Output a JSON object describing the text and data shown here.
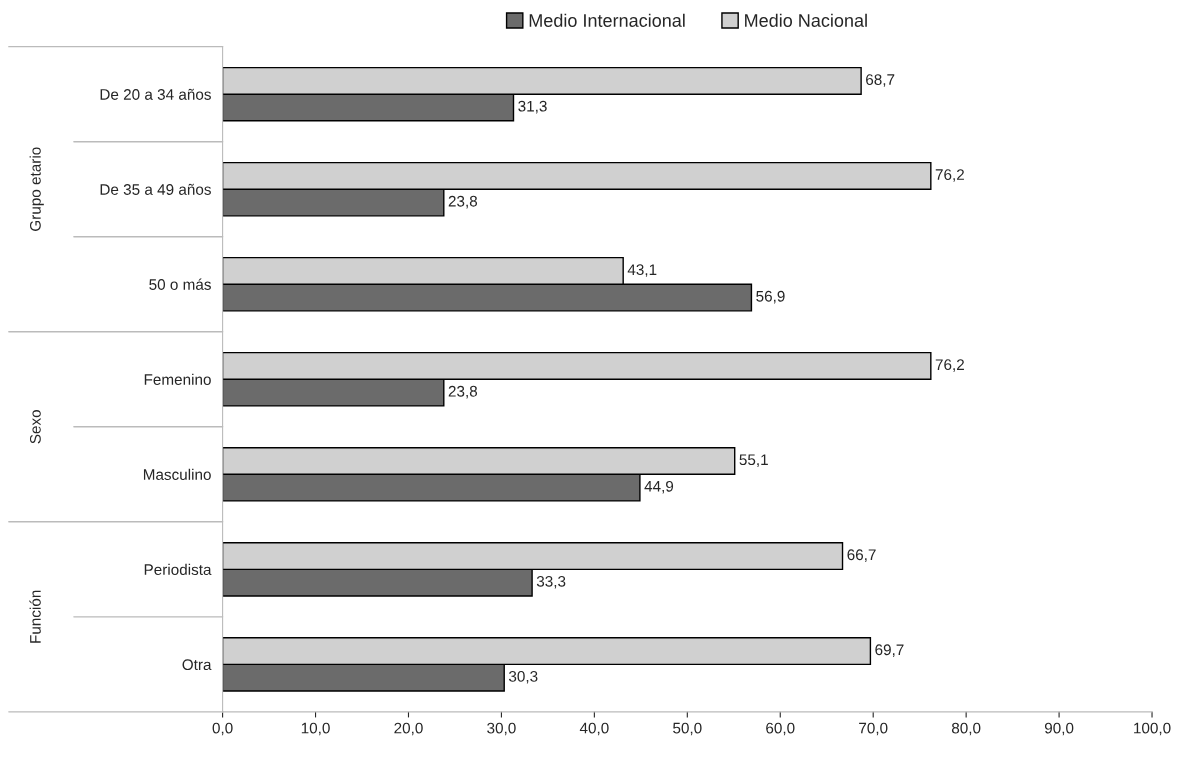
{
  "chart_data": {
    "type": "bar",
    "orientation": "horizontal",
    "categories": [
      "De 20 a 34 años",
      "De 35 a 49 años",
      "50 o más",
      "Femenino",
      "Masculino",
      "Periodista",
      "Otra"
    ],
    "series": [
      {
        "name": "Medio Internacional",
        "color": "#6b6b6b",
        "values": [
          31.3,
          23.8,
          56.9,
          23.8,
          44.9,
          33.3,
          30.3
        ],
        "value_labels": [
          "31,3",
          "23,8",
          "56,9",
          "23,8",
          "44,9",
          "33,3",
          "30,3"
        ]
      },
      {
        "name": "Medio Nacional",
        "color": "#d0d0d0",
        "values": [
          68.7,
          76.2,
          43.1,
          76.2,
          55.1,
          66.7,
          69.7
        ],
        "value_labels": [
          "68,7",
          "76,2",
          "43,1",
          "76,2",
          "55,1",
          "66,7",
          "69,7"
        ]
      }
    ],
    "xlim": [
      0,
      100
    ],
    "xticks": [
      {
        "value": 0,
        "label": "0,0"
      },
      {
        "value": 10,
        "label": "10,0"
      },
      {
        "value": 20,
        "label": "20,0"
      },
      {
        "value": 30,
        "label": "30,0"
      },
      {
        "value": 40,
        "label": "40,0"
      },
      {
        "value": 50,
        "label": "50,0"
      },
      {
        "value": 60,
        "label": "60,0"
      },
      {
        "value": 70,
        "label": "70,0"
      },
      {
        "value": 80,
        "label": "80,0"
      },
      {
        "value": 90,
        "label": "90,0"
      },
      {
        "value": 100,
        "label": "100,0"
      }
    ],
    "annotations": [
      "Grupo etario",
      "Sexo",
      "Función"
    ],
    "grid": false,
    "legend": "top"
  }
}
